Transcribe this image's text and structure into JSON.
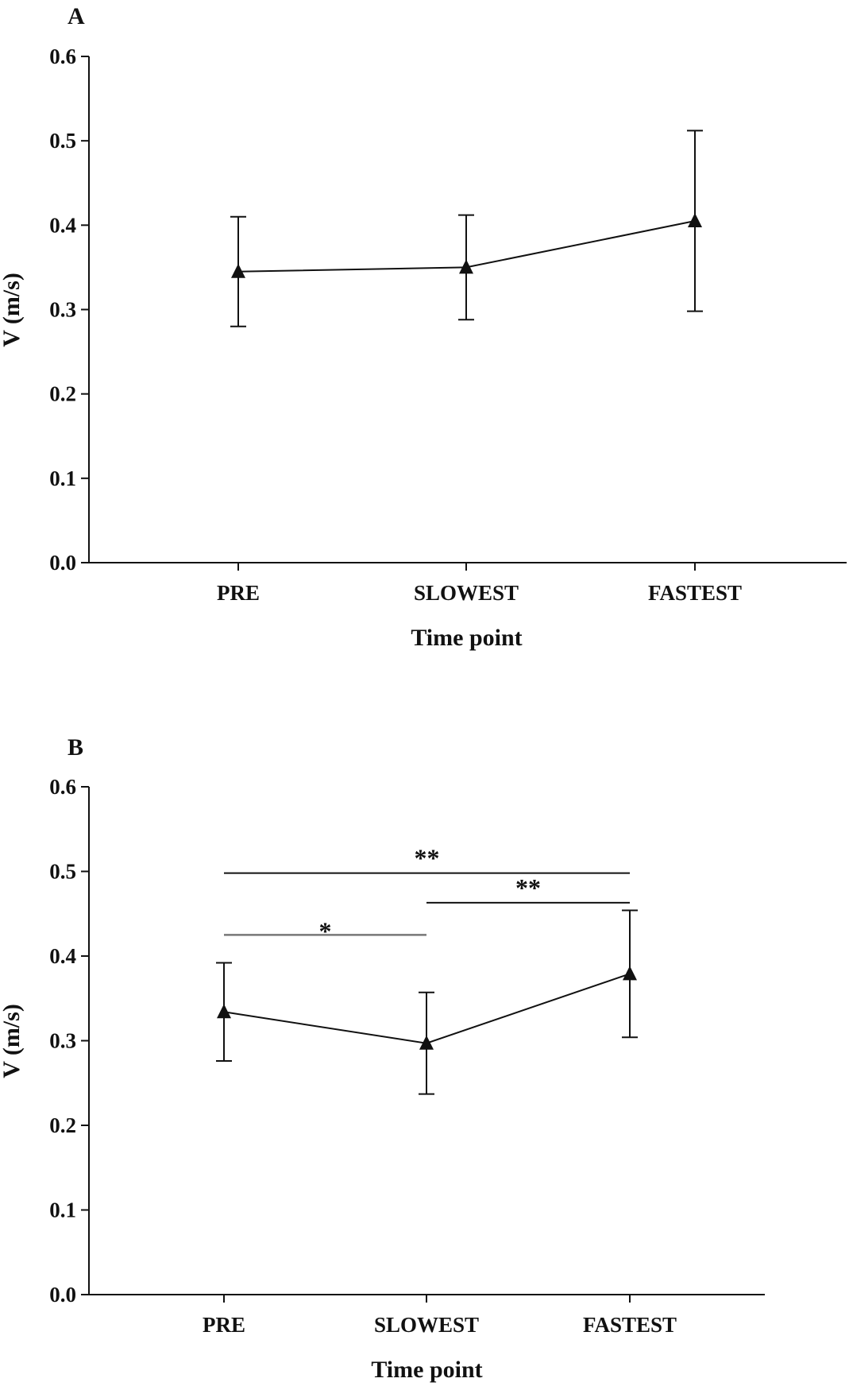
{
  "chart_data": [
    {
      "panel": "A",
      "type": "line",
      "categories": [
        "PRE",
        "SLOWEST",
        "FASTEST"
      ],
      "values": [
        0.345,
        0.35,
        0.405
      ],
      "errors": [
        0.065,
        0.062,
        0.107
      ],
      "xlabel": "Time point",
      "ylabel": "V (m/s)",
      "ylim": [
        0,
        0.6
      ],
      "yticks": [
        "0.0",
        "0.1",
        "0.2",
        "0.3",
        "0.4",
        "0.5",
        "0.6"
      ],
      "marker": "triangle",
      "grid": false,
      "significance": []
    },
    {
      "panel": "B",
      "type": "line",
      "categories": [
        "PRE",
        "SLOWEST",
        "FASTEST"
      ],
      "values": [
        0.334,
        0.297,
        0.379
      ],
      "errors": [
        0.058,
        0.06,
        0.075
      ],
      "xlabel": "Time point",
      "ylabel": "V (m/s)",
      "ylim": [
        0,
        0.6
      ],
      "yticks": [
        "0.0",
        "0.1",
        "0.2",
        "0.3",
        "0.4",
        "0.5",
        "0.6"
      ],
      "marker": "triangle",
      "grid": false,
      "significance": [
        {
          "from": "PRE",
          "to": "FASTEST",
          "y": 0.498,
          "label": "**"
        },
        {
          "from": "SLOWEST",
          "to": "FASTEST",
          "y": 0.463,
          "label": "**"
        },
        {
          "from": "PRE",
          "to": "SLOWEST",
          "y": 0.425,
          "label": "*"
        }
      ]
    }
  ]
}
